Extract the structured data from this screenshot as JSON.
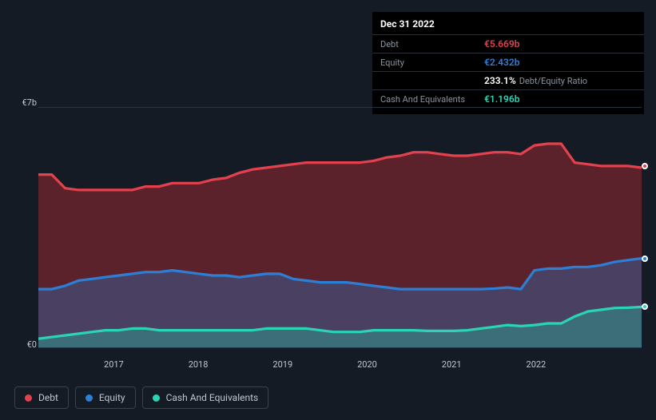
{
  "chart": {
    "type": "area",
    "background": "#151b24",
    "ylim": [
      0,
      7
    ],
    "y_unit_prefix": "€",
    "y_unit_suffix": "b",
    "y_ticks": [
      0,
      7
    ],
    "x_labels": [
      "2017",
      "2018",
      "2019",
      "2020",
      "2021",
      "2022"
    ],
    "x_label_positions_pct": [
      12.5,
      26.5,
      40.5,
      54.5,
      68.5,
      82.5
    ],
    "grid_color": "#2a3340",
    "series": {
      "debt": {
        "label": "Debt",
        "color": "#e2414d",
        "fill": "rgba(180,45,55,0.45)",
        "values": [
          5.05,
          5.05,
          4.65,
          4.6,
          4.6,
          4.6,
          4.6,
          4.6,
          4.7,
          4.7,
          4.8,
          4.8,
          4.8,
          4.9,
          4.95,
          5.1,
          5.2,
          5.25,
          5.3,
          5.35,
          5.4,
          5.4,
          5.4,
          5.4,
          5.4,
          5.45,
          5.55,
          5.6,
          5.7,
          5.7,
          5.65,
          5.6,
          5.6,
          5.65,
          5.7,
          5.7,
          5.65,
          5.9,
          5.95,
          5.95,
          5.4,
          5.35,
          5.3,
          5.3,
          5.3,
          5.25
        ]
      },
      "equity": {
        "label": "Equity",
        "color": "#2d7fd6",
        "fill": "rgba(45,110,180,0.40)",
        "values": [
          1.7,
          1.7,
          1.8,
          1.95,
          2.0,
          2.05,
          2.1,
          2.15,
          2.2,
          2.2,
          2.25,
          2.2,
          2.15,
          2.1,
          2.1,
          2.05,
          2.1,
          2.15,
          2.15,
          2.0,
          1.95,
          1.9,
          1.9,
          1.9,
          1.85,
          1.8,
          1.75,
          1.7,
          1.7,
          1.7,
          1.7,
          1.7,
          1.7,
          1.7,
          1.72,
          1.75,
          1.7,
          2.25,
          2.3,
          2.3,
          2.35,
          2.35,
          2.4,
          2.5,
          2.55,
          2.6
        ]
      },
      "cash": {
        "label": "Cash And Equivalents",
        "color": "#2bd4b4",
        "fill": "rgba(43,180,160,0.40)",
        "values": [
          0.25,
          0.3,
          0.35,
          0.4,
          0.45,
          0.5,
          0.5,
          0.55,
          0.55,
          0.5,
          0.5,
          0.5,
          0.5,
          0.5,
          0.5,
          0.5,
          0.5,
          0.55,
          0.55,
          0.55,
          0.55,
          0.5,
          0.45,
          0.45,
          0.45,
          0.5,
          0.5,
          0.5,
          0.5,
          0.48,
          0.48,
          0.48,
          0.5,
          0.55,
          0.6,
          0.65,
          0.62,
          0.65,
          0.7,
          0.7,
          0.9,
          1.05,
          1.1,
          1.15,
          1.16,
          1.18
        ]
      }
    },
    "end_markers": [
      {
        "series": "debt",
        "pct_y": 24.3
      },
      {
        "series": "equity",
        "pct_y": 62.9
      },
      {
        "series": "cash",
        "pct_y": 83.1
      }
    ]
  },
  "tooltip": {
    "date": "Dec 31 2022",
    "rows": [
      {
        "label": "Debt",
        "value": "€5.669b",
        "color": "#e2414d"
      },
      {
        "label": "Equity",
        "value": "€2.432b",
        "color": "#2d7fd6"
      },
      {
        "label": "",
        "value": "233.1%",
        "color": "#ffffff",
        "extra": "Debt/Equity Ratio"
      },
      {
        "label": "Cash And Equivalents",
        "value": "€1.196b",
        "color": "#2bd4b4"
      }
    ]
  },
  "legend": [
    {
      "label": "Debt",
      "color": "#e2414d"
    },
    {
      "label": "Equity",
      "color": "#2d7fd6"
    },
    {
      "label": "Cash And Equivalents",
      "color": "#2bd4b4"
    }
  ]
}
